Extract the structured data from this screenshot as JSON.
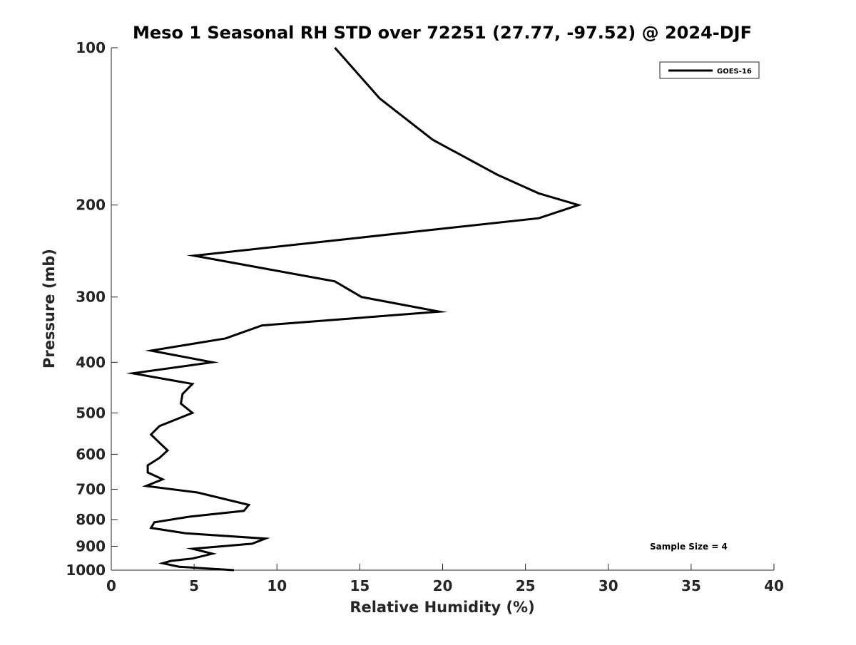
{
  "chart_data": {
    "type": "line",
    "title": "Meso 1 Seasonal RH STD over 72251 (27.77, -97.52) @ 2024-DJF",
    "xlabel": "Relative Humidity (%)",
    "ylabel": "Pressure (mb)",
    "xlim": [
      0,
      40
    ],
    "ylim": [
      100,
      1000
    ],
    "yscale": "log",
    "yaxis_reversed": true,
    "xticks": [
      0,
      5,
      10,
      15,
      20,
      25,
      30,
      35,
      40
    ],
    "xtick_labels": [
      "0",
      "5",
      "10",
      "15",
      "20",
      "25",
      "30",
      "35",
      "40"
    ],
    "yticks": [
      100,
      200,
      300,
      400,
      500,
      600,
      700,
      800,
      900,
      1000
    ],
    "ytick_labels": [
      "100",
      "200",
      "300",
      "400",
      "500",
      "600",
      "700",
      "800",
      "900",
      "1000"
    ],
    "grid": false,
    "legend_position": "top-right",
    "annotation": "Sample Size = 4",
    "series": [
      {
        "name": "GOES-16",
        "color": "#000000",
        "x": [
          13.5,
          16.2,
          19.4,
          23.3,
          25.8,
          28.2,
          25.8,
          5.0,
          13.5,
          15.1,
          19.8,
          9.1,
          6.9,
          2.4,
          6.1,
          1.3,
          4.9,
          4.3,
          4.2,
          4.9,
          2.9,
          2.4,
          2.9,
          3.4,
          2.9,
          2.2,
          2.2,
          3.1,
          2.1,
          5.2,
          8.3,
          8.0,
          4.7,
          2.6,
          2.4,
          4.5,
          9.3,
          8.5,
          4.9,
          6.1,
          4.9,
          3.6,
          3.1,
          4.1,
          7.4
        ],
        "y": [
          100,
          125,
          150,
          175,
          190,
          200,
          212,
          250,
          280,
          300,
          320,
          340,
          360,
          380,
          400,
          420,
          440,
          460,
          480,
          500,
          530,
          550,
          570,
          590,
          610,
          630,
          650,
          670,
          690,
          710,
          750,
          770,
          790,
          810,
          830,
          850,
          870,
          890,
          910,
          930,
          950,
          960,
          970,
          985,
          1000
        ]
      }
    ]
  }
}
